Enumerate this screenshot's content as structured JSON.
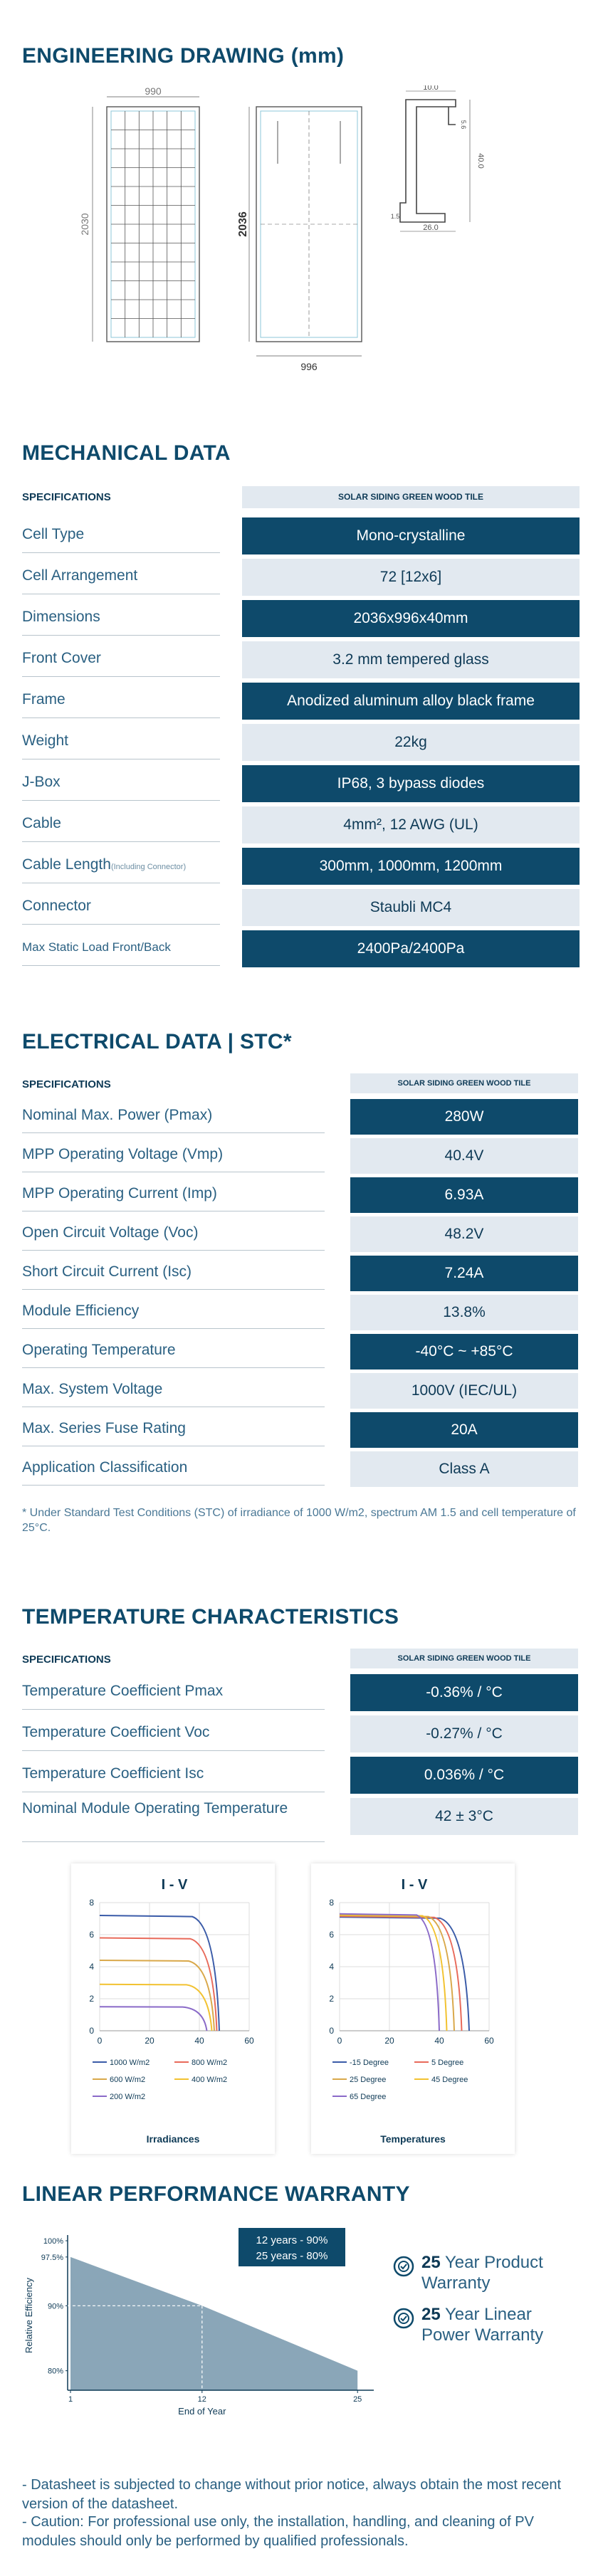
{
  "engineering": {
    "title": "ENGINEERING DRAWING (mm)",
    "dim_width_front": "990",
    "dim_height_front": "2030",
    "dim_height_side": "2036",
    "dim_width_back": "996",
    "profile_top": "10.0",
    "profile_height": "40.0",
    "profile_bottom": "26.0",
    "profile_small": "5.6",
    "profile_lip": "1.5"
  },
  "mechanical": {
    "title": "MECHANICAL DATA",
    "spec_head": "SPECIFICATIONS",
    "col_head": "SOLAR SIDING GREEN WOOD TILE",
    "rows": [
      {
        "label": "Cell Type",
        "note": "",
        "value": "Mono-crystalline"
      },
      {
        "label": "Cell Arrangement",
        "note": "",
        "value": "72 [12x6]"
      },
      {
        "label": "Dimensions",
        "note": "",
        "value": "2036x996x40mm"
      },
      {
        "label": "Front Cover",
        "note": "",
        "value": "3.2 mm tempered glass"
      },
      {
        "label": "Frame",
        "note": "",
        "value": "Anodized aluminum alloy black frame"
      },
      {
        "label": "Weight",
        "note": "",
        "value": "22kg"
      },
      {
        "label": "J-Box",
        "note": "",
        "value": "IP68, 3 bypass diodes"
      },
      {
        "label": "Cable",
        "note": "",
        "value": "4mm², 12 AWG (UL)"
      },
      {
        "label": "Cable Length",
        "note": "(Including Connector)",
        "value": "300mm, 1000mm, 1200mm"
      },
      {
        "label": "Connector",
        "note": "",
        "value": "Staubli MC4"
      },
      {
        "label": "Max Static Load Front/Back",
        "note": "",
        "value": "2400Pa/2400Pa"
      }
    ]
  },
  "electrical": {
    "title": "ELECTRICAL DATA | STC*",
    "spec_head": "SPECIFICATIONS",
    "col_head": "SOLAR SIDING GREEN WOOD TILE",
    "rows": [
      {
        "label": "Nominal Max. Power (Pmax)",
        "value": "280W"
      },
      {
        "label": "MPP Operating Voltage (Vmp)",
        "value": "40.4V"
      },
      {
        "label": "MPP Operating Current (Imp)",
        "value": "6.93A"
      },
      {
        "label": "Open Circuit Voltage (Voc)",
        "value": "48.2V"
      },
      {
        "label": "Short Circuit Current (Isc)",
        "value": "7.24A"
      },
      {
        "label": "Module Efficiency",
        "value": "13.8%"
      },
      {
        "label": "Operating Temperature",
        "value": "-40°C ~ +85°C"
      },
      {
        "label": "Max. System Voltage",
        "value": "1000V (IEC/UL)"
      },
      {
        "label": "Max. Series Fuse Rating",
        "value": "20A"
      },
      {
        "label": "Application Classification",
        "value": "Class A"
      }
    ],
    "footnote": "* Under Standard Test Conditions (STC) of irradiance of 1000 W/m2, spectrum AM 1.5 and cell temperature of 25°C."
  },
  "temperature": {
    "title": "TEMPERATURE CHARACTERISTICS",
    "spec_head": "SPECIFICATIONS",
    "col_head": "SOLAR SIDING GREEN WOOD TILE",
    "rows": [
      {
        "label": "Temperature Coefficient Pmax",
        "value": "-0.36% / °C"
      },
      {
        "label": "Temperature Coefficient Voc",
        "value": "-0.27% / °C"
      },
      {
        "label": "Temperature Coefficient Isc",
        "value": "0.036% / °C"
      },
      {
        "label": "Nominal Module Operating Temperature",
        "value": "42 ± 3°C"
      }
    ]
  },
  "chart_data": [
    {
      "type": "line",
      "title": "I - V",
      "caption": "Irradiances",
      "xlim": [
        0,
        60
      ],
      "ylim": [
        0,
        8
      ],
      "xticks": [
        "0",
        "20",
        "40",
        "60"
      ],
      "yticks": [
        "0",
        "2",
        "4",
        "6",
        "8"
      ],
      "series": [
        {
          "name": "1000 W/m2",
          "color": "#3a5ba8",
          "isc": 7.2,
          "voc": 48
        },
        {
          "name": "800 W/m2",
          "color": "#e86a5a",
          "isc": 5.8,
          "voc": 47
        },
        {
          "name": "600 W/m2",
          "color": "#d9a84a",
          "isc": 4.4,
          "voc": 46
        },
        {
          "name": "400 W/m2",
          "color": "#f2c230",
          "isc": 2.9,
          "voc": 45
        },
        {
          "name": "200 W/m2",
          "color": "#8a6ac8",
          "isc": 1.5,
          "voc": 43
        }
      ]
    },
    {
      "type": "line",
      "title": "I - V",
      "caption": "Temperatures",
      "xlim": [
        0,
        60
      ],
      "ylim": [
        0,
        8
      ],
      "xticks": [
        "0",
        "20",
        "40",
        "60"
      ],
      "yticks": [
        "0",
        "2",
        "4",
        "6",
        "8"
      ],
      "series": [
        {
          "name": "-15 Degree",
          "color": "#3a5ba8",
          "isc": 7.1,
          "voc": 52
        },
        {
          "name": "5 Degree",
          "color": "#e86a5a",
          "isc": 7.15,
          "voc": 49
        },
        {
          "name": "25 Degree",
          "color": "#d9a84a",
          "isc": 7.2,
          "voc": 46
        },
        {
          "name": "45 Degree",
          "color": "#f2c230",
          "isc": 7.25,
          "voc": 43
        },
        {
          "name": "65 Degree",
          "color": "#8a6ac8",
          "isc": 7.3,
          "voc": 40
        }
      ]
    },
    {
      "type": "area",
      "ylabel": "Relative Efficiency",
      "xlabel": "End of Year",
      "x": [
        1,
        12,
        25
      ],
      "y": [
        97.5,
        90,
        80
      ],
      "xticks": [
        "1",
        "12",
        "25"
      ],
      "yticks": [
        "100%",
        "97.5%",
        "90%",
        "80%"
      ],
      "annotation_lines": [
        "12 years - 90%",
        "25 years - 80%"
      ]
    }
  ],
  "warranty": {
    "title": "LINEAR PERFORMANCE WARRANTY",
    "badge1_num": "25",
    "badge1_line1": "Year Product",
    "badge1_line2": "Warranty",
    "badge2_num": "25",
    "badge2_line1": "Year Linear",
    "badge2_line2": "Power Warranty"
  },
  "footer": {
    "line1": "- Datasheet is subjected to change without prior notice, always obtain the most recent version of the datasheet.",
    "line2": "- Caution: For professional use only, the installation, handling, and cleaning of PV modules should only be performed by qualified professionals."
  }
}
